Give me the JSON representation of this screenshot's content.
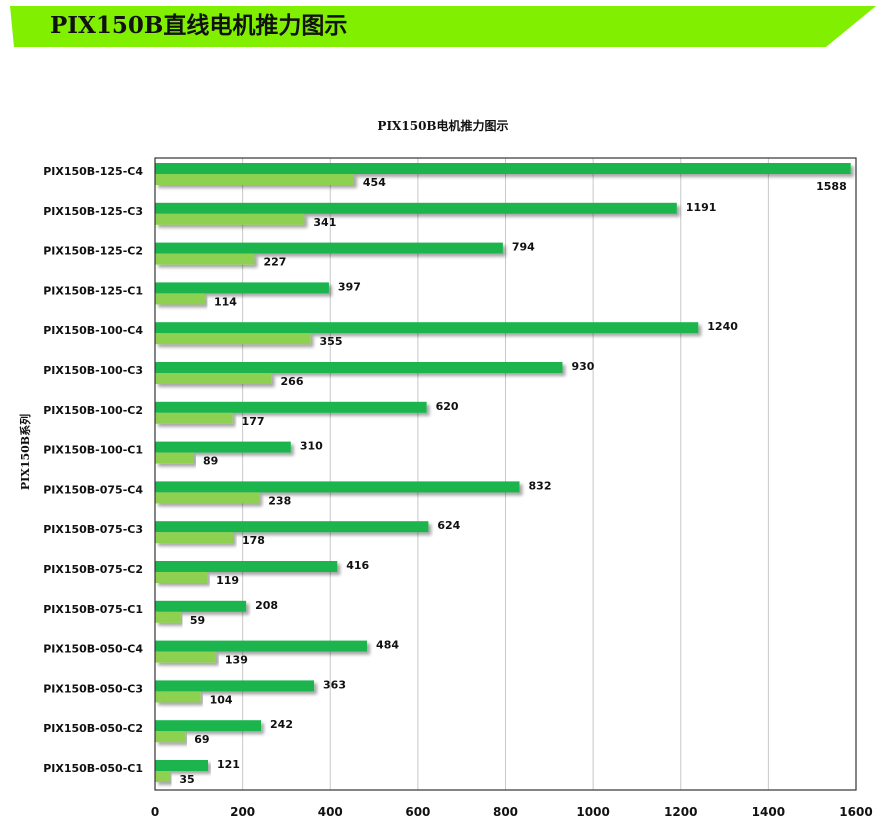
{
  "header": {
    "title": "PIX150B直线电机推力图示",
    "banner_color": "#80f000"
  },
  "chart_data": {
    "type": "bar",
    "orientation": "horizontal",
    "title": "PIX150B电机推力图示",
    "xlabel": "",
    "ylabel": "PIX150B系列",
    "xlim": [
      0,
      1600
    ],
    "xticks": [
      0,
      200,
      400,
      600,
      800,
      1000,
      1200,
      1400,
      1600
    ],
    "grid": true,
    "categories": [
      "PIX150B-125-C4",
      "PIX150B-125-C3",
      "PIX150B-125-C2",
      "PIX150B-125-C1",
      "PIX150B-100-C4",
      "PIX150B-100-C3",
      "PIX150B-100-C2",
      "PIX150B-100-C1",
      "PIX150B-075-C4",
      "PIX150B-075-C3",
      "PIX150B-075-C2",
      "PIX150B-075-C1",
      "PIX150B-050-C4",
      "PIX150B-050-C3",
      "PIX150B-050-C2",
      "PIX150B-050-C1"
    ],
    "series": [
      {
        "color": "#1ab54e",
        "values": [
          1588,
          1191,
          794,
          397,
          1240,
          930,
          620,
          310,
          832,
          624,
          416,
          208,
          484,
          363,
          242,
          121
        ]
      },
      {
        "color": "#8ed050",
        "values": [
          454,
          341,
          227,
          114,
          355,
          266,
          177,
          89,
          238,
          178,
          119,
          59,
          139,
          104,
          69,
          35
        ]
      }
    ]
  }
}
